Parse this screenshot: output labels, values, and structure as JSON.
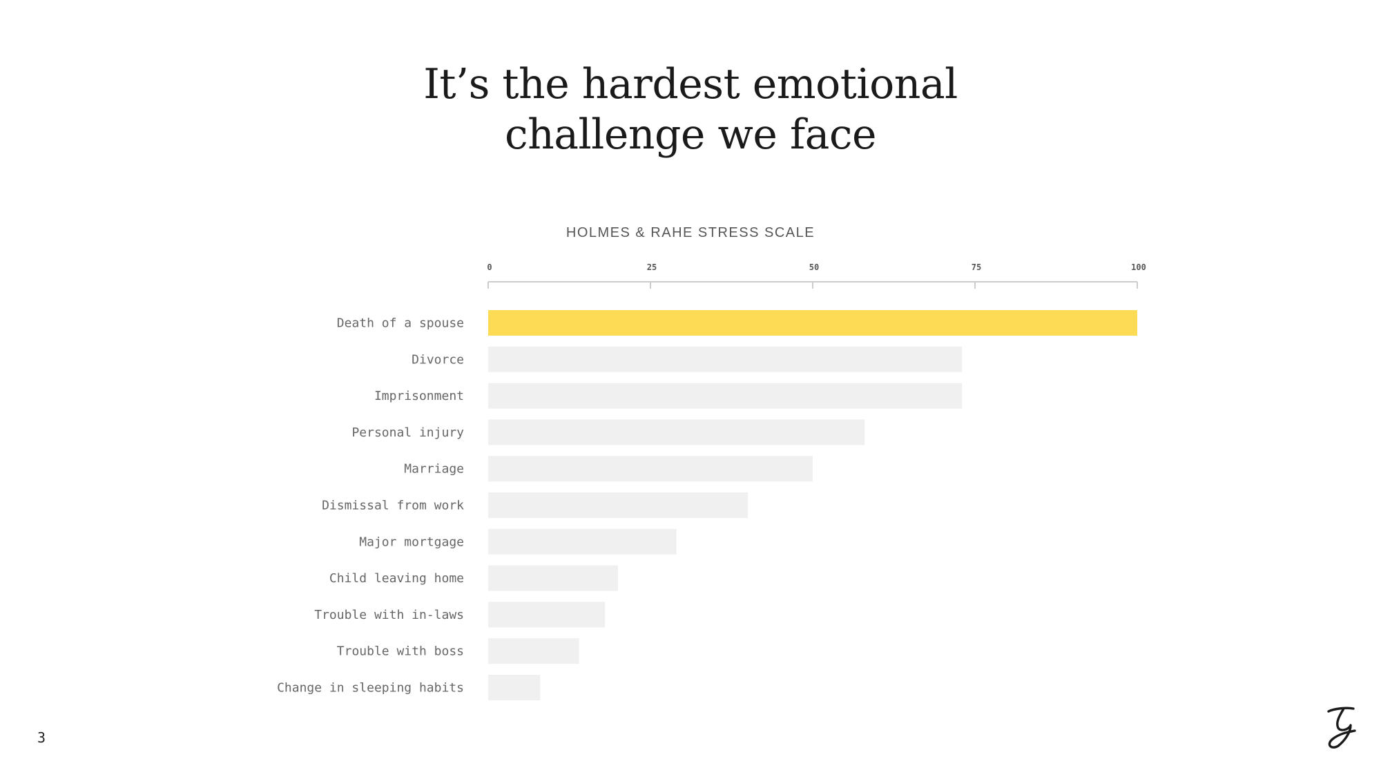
{
  "slide": {
    "title_line1": "It’s the hardest emotional",
    "title_line2": "challenge we face",
    "page_number": "3",
    "logo_icon": "script-g-logo-icon"
  },
  "colors": {
    "highlight": "#fddb55",
    "bar": "#f0f0f0",
    "axis": "#cccccc"
  },
  "chart_data": {
    "type": "bar",
    "orientation": "horizontal",
    "title": "HOLMES & RAHE STRESS SCALE",
    "categories": [
      "Death of a spouse",
      "Divorce",
      "Imprisonment",
      "Personal injury",
      "Marriage",
      "Dismissal from work",
      "Major mortgage",
      "Child leaving home",
      "Trouble with in-laws",
      "Trouble with boss",
      "Change in sleeping habits"
    ],
    "values": [
      100,
      73,
      73,
      58,
      50,
      40,
      29,
      20,
      18,
      14,
      8
    ],
    "highlight_index": 0,
    "xlim": [
      0,
      100
    ],
    "xticks": [
      0,
      25,
      50,
      75,
      100
    ],
    "xtick_labels": [
      "0",
      "25",
      "50",
      "75",
      "100"
    ],
    "axis_position": "top",
    "grid": false,
    "legend": "none"
  }
}
